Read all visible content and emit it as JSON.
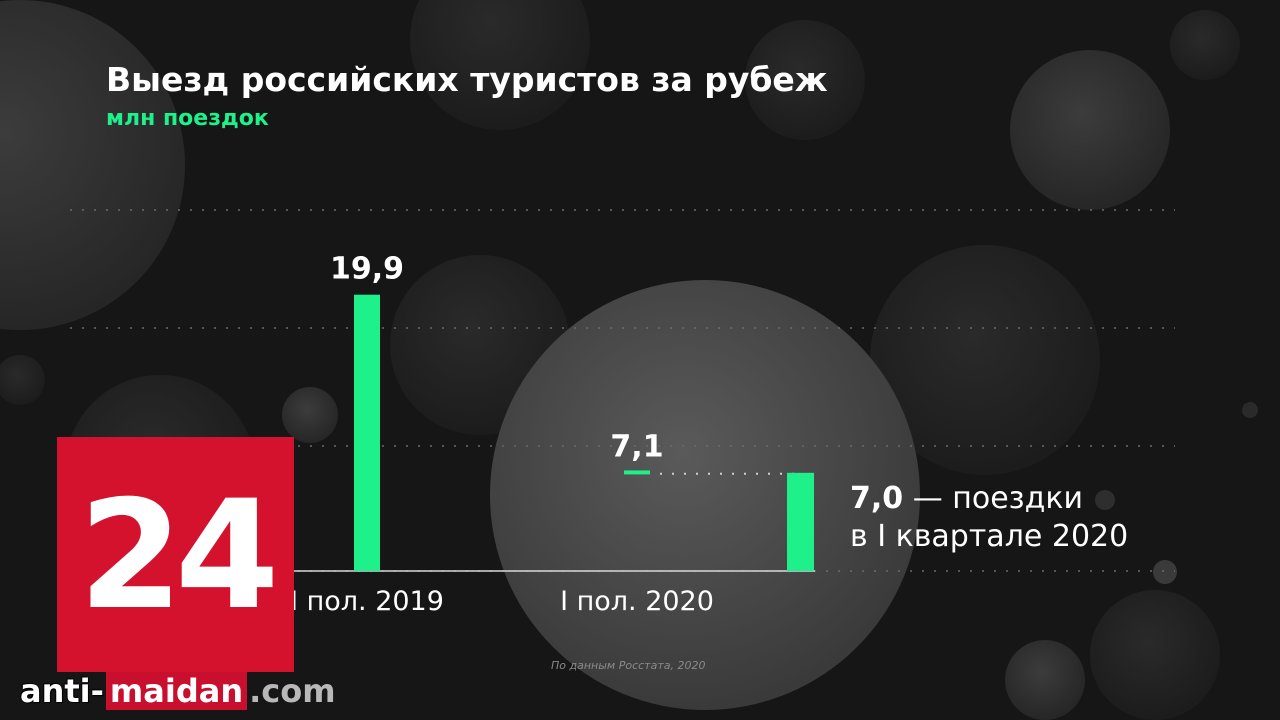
{
  "title": "Выезд российских туристов за рубеж",
  "subtitle": "млн поездок",
  "colors": {
    "accent": "#1ef08a",
    "logo_red": "#d4122d",
    "background": "#161616"
  },
  "chart_data": {
    "type": "bar",
    "categories": [
      "I пол. 2019",
      "I пол. 2020"
    ],
    "values": [
      19.9,
      7.1
    ],
    "value_labels": [
      "19,9",
      "7,1"
    ],
    "annotation": {
      "value": 7.0,
      "value_label": "7,0"
    },
    "ylim": [
      0,
      26
    ],
    "grid": true
  },
  "note": {
    "value": "7,0",
    "text_line1": "— поездки",
    "text_line2": "в I квартале 2020"
  },
  "source": "По данным Росстата, 2020",
  "logo": {
    "text": "24"
  },
  "watermark": {
    "part1": "anti-",
    "part2": "maidan",
    "part3": ".com"
  }
}
